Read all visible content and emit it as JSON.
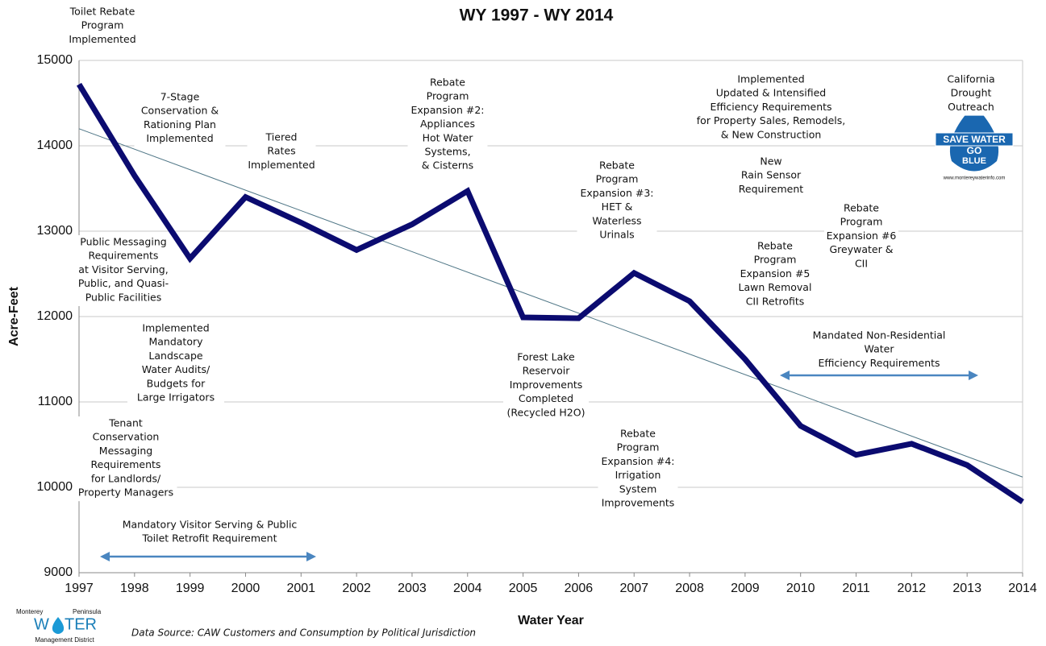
{
  "chart_data": {
    "type": "line",
    "title": "WY 1997 - WY 2014",
    "x_label": "Water Year",
    "y_label": "Acre-Feet",
    "source": "Data Source:  CAW Customers and Consumption by Political Jurisdiction",
    "x": [
      1997,
      1998,
      1999,
      2000,
      2001,
      2002,
      2003,
      2004,
      2005,
      2006,
      2007,
      2008,
      2009,
      2010,
      2011,
      2012,
      2013,
      2014
    ],
    "series": [
      {
        "color": "#0b0b70",
        "values": [
          14720,
          13650,
          12680,
          13400,
          13100,
          12780,
          13080,
          13470,
          11990,
          11980,
          12510,
          12180,
          11500,
          10720,
          10380,
          10510,
          10260,
          9830
        ]
      }
    ],
    "trendline": {
      "color": "#4f7686",
      "x": [
        1997,
        2014
      ],
      "values": [
        14200,
        10120
      ]
    },
    "xlim": [
      1997,
      2014
    ],
    "xticks": [
      1997,
      1998,
      1999,
      2000,
      2001,
      2002,
      2003,
      2004,
      2005,
      2006,
      2007,
      2008,
      2009,
      2010,
      2011,
      2012,
      2013,
      2014
    ],
    "ylim": [
      9000,
      15000
    ],
    "yticks": [
      9000,
      10000,
      11000,
      12000,
      13000,
      14000,
      15000
    ],
    "grid": true,
    "annotations": [
      [
        "Toilet Rebate",
        "Program",
        "Implemented"
      ],
      [
        "7-Stage",
        "Conservation  &",
        "Rationing Plan",
        "Implemented"
      ],
      [
        "Tiered",
        "Rates",
        "Implemented"
      ],
      [
        "Rebate",
        "Program",
        "Expansion #2:",
        "Appliances",
        "Hot Water",
        "Systems,",
        "& Cisterns"
      ],
      [
        "Implemented",
        "Updated & Intensified",
        "Efficiency Requirements",
        "for Property Sales, Remodels,",
        "& New Construction"
      ],
      [
        "California",
        "Drought",
        "Outreach"
      ],
      [
        "New",
        "Rain Sensor",
        "Requirement"
      ],
      [
        "Rebate",
        "Program",
        "Expansion #3:",
        "HET &",
        "Waterless",
        "Urinals"
      ],
      [
        "Rebate",
        "Program",
        "Expansion #6",
        "Greywater &",
        "CII"
      ],
      [
        "Public Messaging",
        "Requirements",
        "at Visitor Serving,",
        "Public, and Quasi-",
        "Public Facilities"
      ],
      [
        "Rebate",
        "Program",
        "Expansion #5",
        "Lawn Removal",
        "CII Retrofits"
      ],
      [
        "Implemented",
        "Mandatory",
        "Landscape",
        "Water Audits/",
        "Budgets for",
        "Large Irrigators"
      ],
      [
        "Mandated Non-Residential",
        "Water",
        "Efficiency Requirements"
      ],
      [
        "Forest Lake",
        "Reservoir",
        "Improvements",
        "Completed",
        "(Recycled H2O)"
      ],
      [
        "Tenant",
        "Conservation",
        "Messaging",
        "Requirements",
        "for Landlords/",
        "Property Managers"
      ],
      [
        "Rebate",
        "Program",
        "Expansion #4:",
        "Irrigation",
        "System",
        "Improvements"
      ],
      [
        "Mandatory Visitor Serving & Public",
        "Toilet Retrofit Requirement"
      ]
    ],
    "logo": {
      "top_left": "Monterey",
      "top_right": "Peninsula",
      "main_left": "W",
      "main_right": "TER",
      "bottom": "Management District"
    },
    "badge": {
      "line1": "SAVE WATER",
      "line2": "GO",
      "line3": "BLUE",
      "url": "www.montereywaterinfo.com"
    }
  }
}
